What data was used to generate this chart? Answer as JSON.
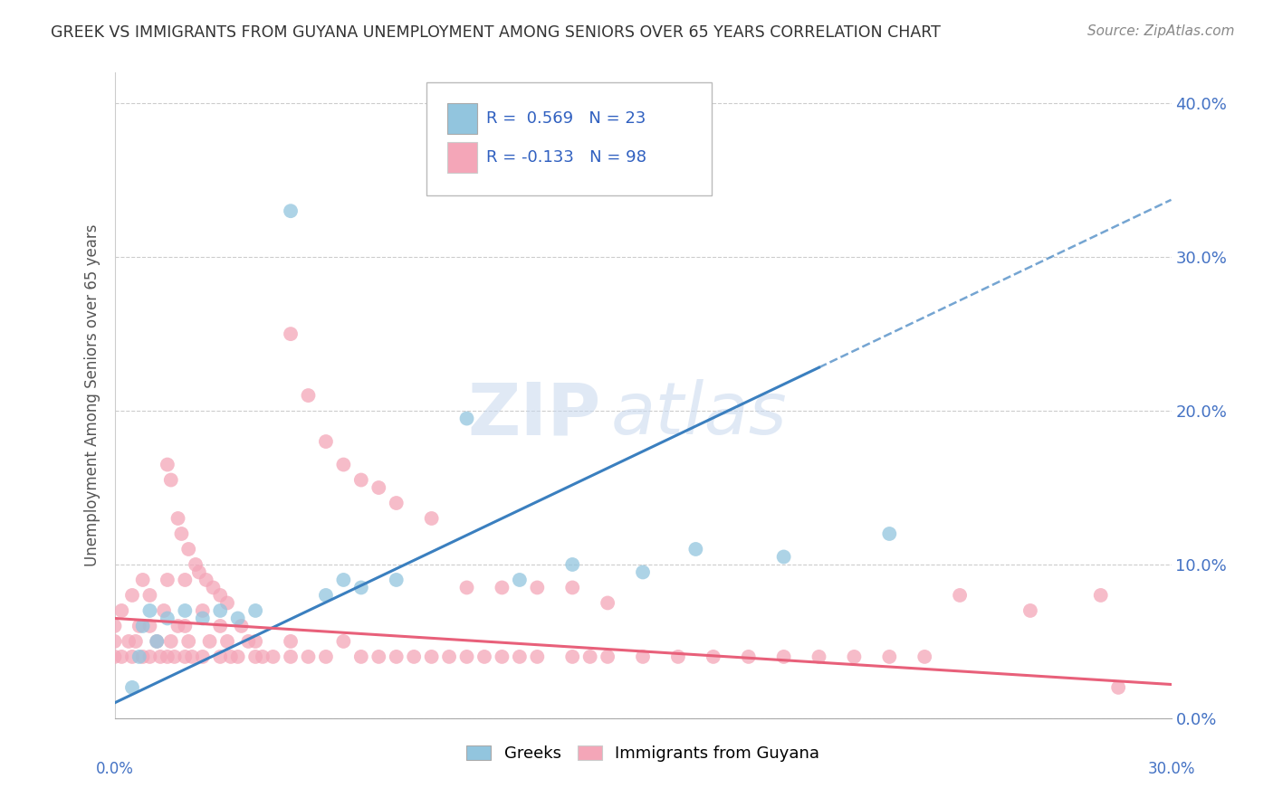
{
  "title": "GREEK VS IMMIGRANTS FROM GUYANA UNEMPLOYMENT AMONG SENIORS OVER 65 YEARS CORRELATION CHART",
  "source": "Source: ZipAtlas.com",
  "ylabel": "Unemployment Among Seniors over 65 years",
  "greek_color": "#92c5de",
  "guyana_color": "#f4a6b8",
  "greek_line_color": "#3a7fbf",
  "guyana_line_color": "#e8607a",
  "xlim": [
    0.0,
    0.3
  ],
  "ylim": [
    0.0,
    0.42
  ],
  "yticks": [
    0.0,
    0.1,
    0.2,
    0.3,
    0.4
  ],
  "ytick_labels": [
    "0.0%",
    "10.0%",
    "20.0%",
    "30.0%",
    "40.0%"
  ],
  "legend_greek_text": "R =  0.569   N = 23",
  "legend_guyana_text": "R = -0.133   N = 98",
  "legend_text_color": "#3060c0",
  "watermark_zip": "ZIP",
  "watermark_atlas": "atlas",
  "greek_x": [
    0.005,
    0.007,
    0.008,
    0.01,
    0.012,
    0.015,
    0.02,
    0.025,
    0.03,
    0.035,
    0.04,
    0.05,
    0.06,
    0.065,
    0.07,
    0.08,
    0.1,
    0.115,
    0.13,
    0.15,
    0.165,
    0.19,
    0.22
  ],
  "greek_y": [
    0.02,
    0.04,
    0.06,
    0.07,
    0.05,
    0.065,
    0.07,
    0.065,
    0.07,
    0.065,
    0.07,
    0.33,
    0.08,
    0.09,
    0.085,
    0.09,
    0.195,
    0.09,
    0.1,
    0.095,
    0.11,
    0.105,
    0.12
  ],
  "guyana_x": [
    0.0,
    0.0,
    0.0,
    0.002,
    0.002,
    0.004,
    0.005,
    0.005,
    0.006,
    0.007,
    0.008,
    0.008,
    0.01,
    0.01,
    0.01,
    0.012,
    0.013,
    0.014,
    0.015,
    0.015,
    0.016,
    0.017,
    0.018,
    0.02,
    0.02,
    0.02,
    0.021,
    0.022,
    0.025,
    0.025,
    0.027,
    0.03,
    0.03,
    0.032,
    0.033,
    0.035,
    0.036,
    0.038,
    0.04,
    0.04,
    0.042,
    0.045,
    0.05,
    0.05,
    0.055,
    0.06,
    0.065,
    0.07,
    0.075,
    0.08,
    0.085,
    0.09,
    0.095,
    0.1,
    0.105,
    0.11,
    0.115,
    0.12,
    0.13,
    0.135,
    0.14,
    0.15,
    0.16,
    0.17,
    0.18,
    0.19,
    0.2,
    0.21,
    0.22,
    0.23,
    0.24,
    0.26,
    0.28,
    0.285,
    0.05,
    0.055,
    0.06,
    0.065,
    0.07,
    0.075,
    0.08,
    0.09,
    0.1,
    0.11,
    0.12,
    0.13,
    0.14,
    0.015,
    0.016,
    0.018,
    0.019,
    0.021,
    0.023,
    0.024,
    0.026,
    0.028,
    0.03,
    0.032
  ],
  "guyana_y": [
    0.04,
    0.05,
    0.06,
    0.04,
    0.07,
    0.05,
    0.04,
    0.08,
    0.05,
    0.06,
    0.04,
    0.09,
    0.04,
    0.06,
    0.08,
    0.05,
    0.04,
    0.07,
    0.04,
    0.09,
    0.05,
    0.04,
    0.06,
    0.04,
    0.06,
    0.09,
    0.05,
    0.04,
    0.04,
    0.07,
    0.05,
    0.04,
    0.06,
    0.05,
    0.04,
    0.04,
    0.06,
    0.05,
    0.04,
    0.05,
    0.04,
    0.04,
    0.04,
    0.05,
    0.04,
    0.04,
    0.05,
    0.04,
    0.04,
    0.04,
    0.04,
    0.04,
    0.04,
    0.04,
    0.04,
    0.04,
    0.04,
    0.04,
    0.04,
    0.04,
    0.04,
    0.04,
    0.04,
    0.04,
    0.04,
    0.04,
    0.04,
    0.04,
    0.04,
    0.04,
    0.08,
    0.07,
    0.08,
    0.02,
    0.25,
    0.21,
    0.18,
    0.165,
    0.155,
    0.15,
    0.14,
    0.13,
    0.085,
    0.085,
    0.085,
    0.085,
    0.075,
    0.165,
    0.155,
    0.13,
    0.12,
    0.11,
    0.1,
    0.095,
    0.09,
    0.085,
    0.08,
    0.075
  ]
}
